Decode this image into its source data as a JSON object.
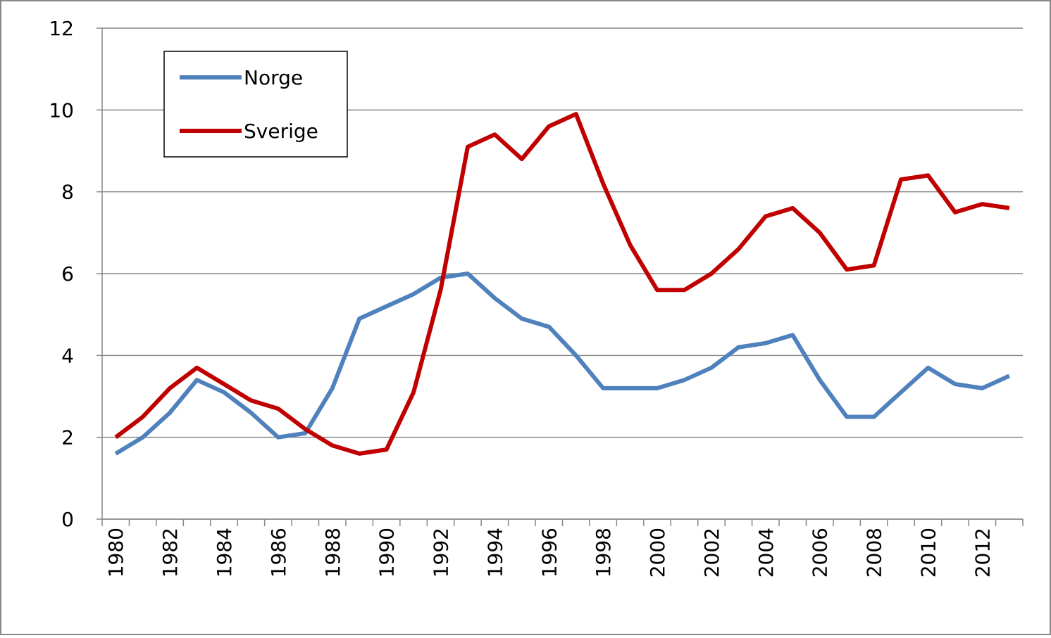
{
  "chart_data": {
    "type": "line",
    "categories": [
      "1980",
      null,
      "1982",
      null,
      "1984",
      null,
      "1986",
      null,
      "1988",
      null,
      "1990",
      null,
      "1992",
      null,
      "1994",
      null,
      "1996",
      null,
      "1998",
      null,
      "2000",
      null,
      "2002",
      null,
      "2004",
      null,
      "2006",
      null,
      "2008",
      null,
      "2010",
      null,
      "2012",
      null
    ],
    "series": [
      {
        "name": "Norge",
        "color": "#4f81bd",
        "values": [
          1.6,
          2.0,
          2.6,
          3.4,
          3.1,
          2.6,
          2.0,
          2.1,
          3.2,
          4.9,
          5.2,
          5.5,
          5.9,
          6.0,
          5.4,
          4.9,
          4.7,
          4.0,
          3.2,
          3.2,
          3.2,
          3.4,
          3.7,
          4.2,
          4.3,
          4.5,
          3.4,
          2.5,
          2.5,
          3.1,
          3.7,
          3.3,
          3.2,
          3.5
        ]
      },
      {
        "name": "Sverige",
        "color": "#c00000",
        "values": [
          2.0,
          2.5,
          3.2,
          3.7,
          3.3,
          2.9,
          2.7,
          2.2,
          1.8,
          1.6,
          1.7,
          3.1,
          5.6,
          9.1,
          9.4,
          8.8,
          9.6,
          9.9,
          8.2,
          6.7,
          5.6,
          5.6,
          6.0,
          6.6,
          7.4,
          7.6,
          7.0,
          6.1,
          6.2,
          8.3,
          8.4,
          7.5,
          7.7,
          7.6
        ]
      }
    ],
    "ylim": [
      0,
      12
    ],
    "yticks": [
      0,
      2,
      4,
      6,
      8,
      10,
      12
    ],
    "grid": true,
    "legend": "upper-left"
  }
}
